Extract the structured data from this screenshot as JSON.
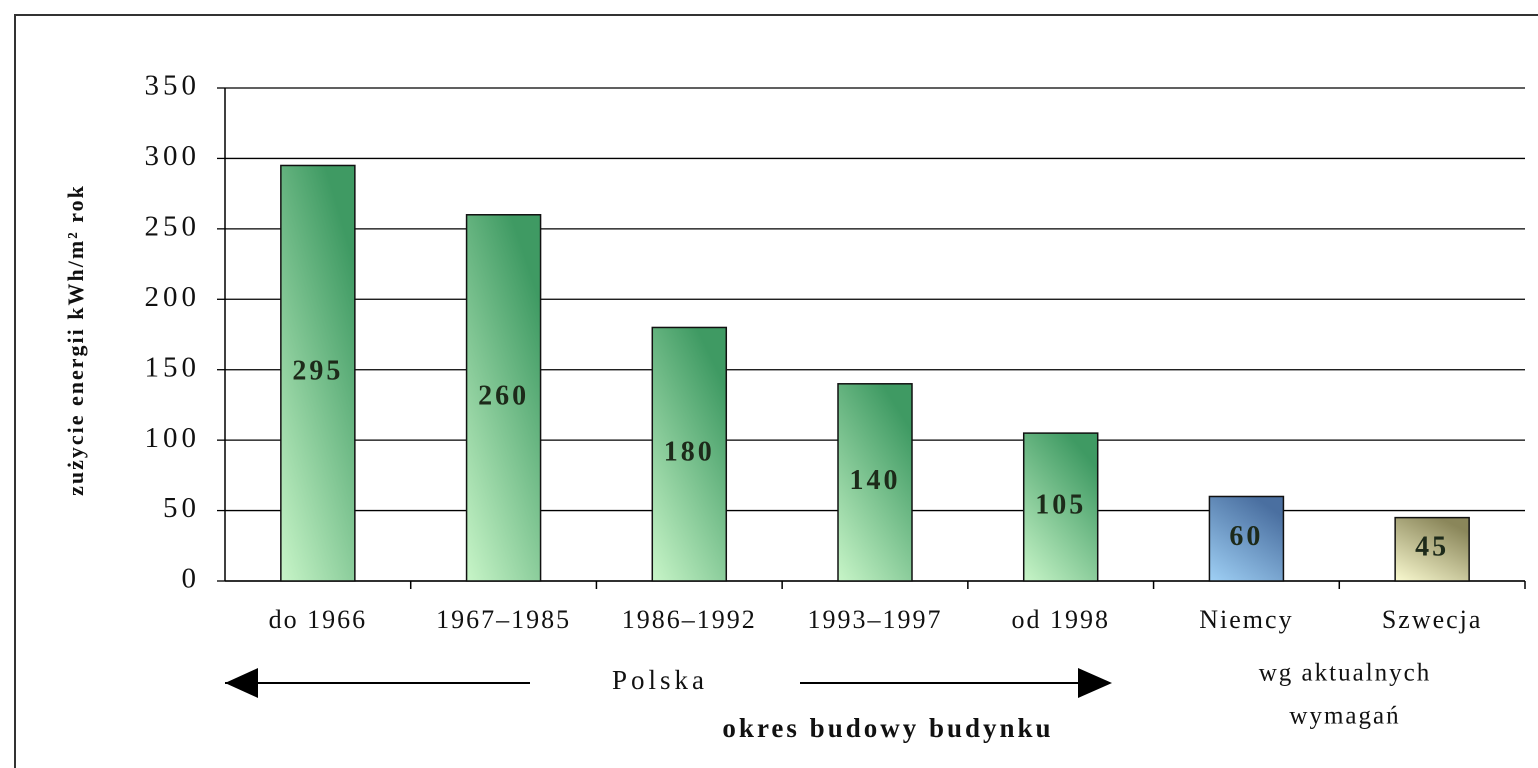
{
  "chart_data": {
    "type": "bar",
    "y_label": "zużycie energii kWh/m² rok",
    "x_label": "okres budowy budynku",
    "annotations": [
      "Polska",
      "wg aktualnych",
      "wymagań"
    ],
    "categories": [
      "do 1966",
      "1967–1985",
      "1986–1992",
      "1993–1997",
      "od 1998",
      "Niemcy",
      "Szwecja"
    ],
    "values": [
      295,
      260,
      180,
      140,
      105,
      60,
      45
    ],
    "colors": [
      "#3f9a63",
      "#3f9a63",
      "#3f9a63",
      "#3f9a63",
      "#3f9a63",
      "#4a6fa0",
      "#8a865a"
    ],
    "ylim": [
      0,
      350
    ],
    "yticks": [
      0,
      50,
      100,
      150,
      200,
      250,
      300,
      350
    ],
    "grid": true
  }
}
